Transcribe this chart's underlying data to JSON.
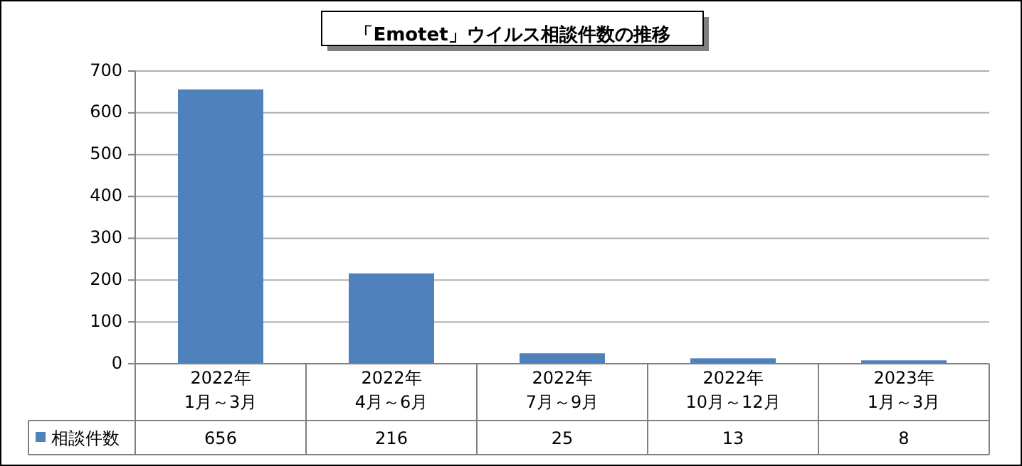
{
  "chart_data": {
    "type": "bar",
    "title": "「Emotet」ウイルス相談件数の推移",
    "categories": [
      "2022年\n1月～3月",
      "2022年\n4月～6月",
      "2022年\n7月～9月",
      "2022年\n10月～12月",
      "2023年\n1月～3月"
    ],
    "series": [
      {
        "name": "相談件数",
        "color": "#4f81bd",
        "values": [
          656,
          216,
          25,
          13,
          8
        ]
      }
    ],
    "ylim": [
      0,
      700
    ],
    "yticks": [
      0,
      100,
      200,
      300,
      400,
      500,
      600,
      700
    ],
    "grid": "y",
    "data_labels": true,
    "legend": "bottom left"
  }
}
